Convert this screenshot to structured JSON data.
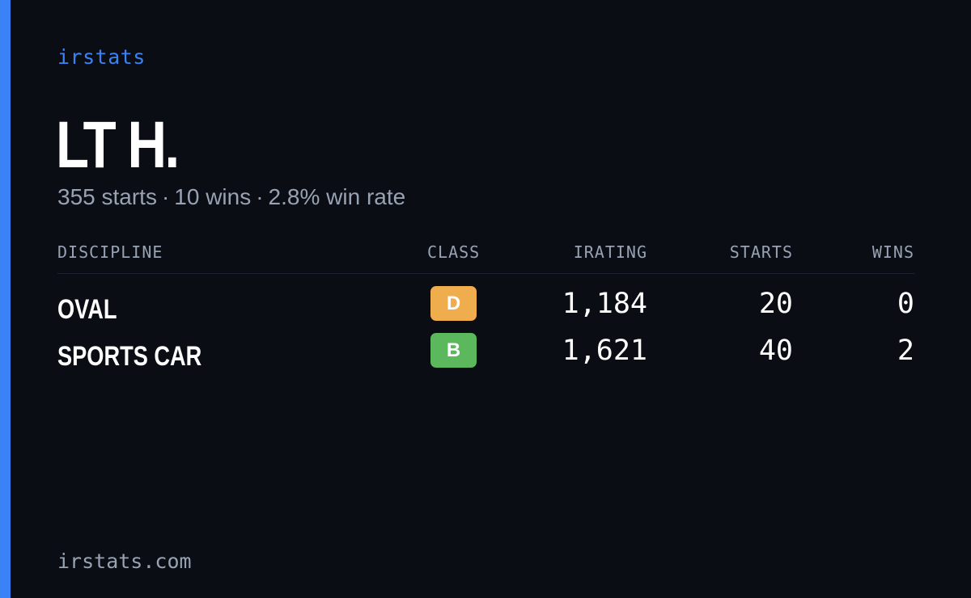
{
  "brand": "irstats",
  "driver": {
    "name": "LT H."
  },
  "summary": {
    "starts_text": "355 starts",
    "wins_text": "10 wins",
    "win_rate_text": "2.8% win rate",
    "separator": "·"
  },
  "table": {
    "headers": {
      "discipline": "DISCIPLINE",
      "class": "CLASS",
      "irating": "IRATING",
      "starts": "STARTS",
      "wins": "WINS"
    },
    "rows": [
      {
        "discipline": "OVAL",
        "class": "D",
        "class_color": "#f0ad4e",
        "irating": "1,184",
        "starts": "20",
        "wins": "0"
      },
      {
        "discipline": "SPORTS CAR",
        "class": "B",
        "class_color": "#5cb85c",
        "irating": "1,621",
        "starts": "40",
        "wins": "2"
      }
    ]
  },
  "footer": "irstats.com",
  "colors": {
    "background": "#0a0d14",
    "accent": "#3b82f6",
    "muted_text": "#98a2b3",
    "primary_text": "#ffffff"
  }
}
